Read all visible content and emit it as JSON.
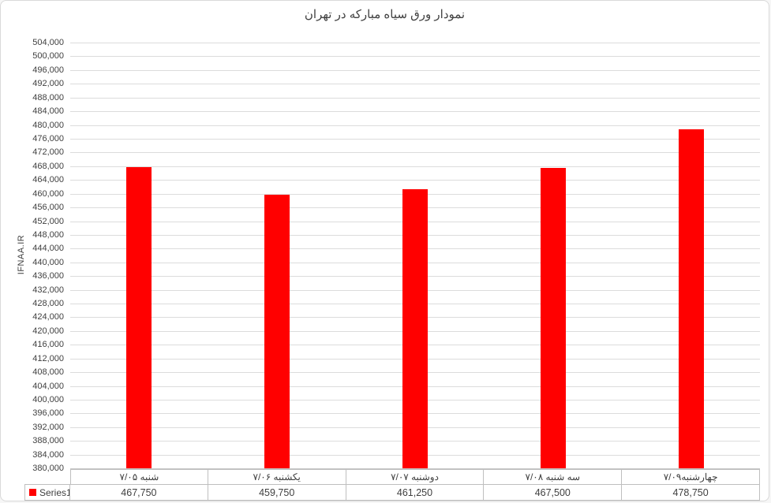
{
  "chart": {
    "title": "نمودار ورق سیاه مبارکه در تهران",
    "y_axis_title": "IFNAA.IR",
    "series_name": "Series1"
  },
  "chart_data": {
    "type": "bar",
    "title": "نمودار ورق سیاه مبارکه در تهران",
    "xlabel": "",
    "ylabel": "IFNAA.IR",
    "categories": [
      "شنبه ۷/۰۵",
      "یکشنبه ۷/۰۶",
      "دوشنبه ۷/۰۷",
      "سه شنبه ۷/۰۸",
      "چهارشنبه۷/۰۹"
    ],
    "series": [
      {
        "name": "Series1",
        "values": [
          467750,
          459750,
          461250,
          467500,
          478750
        ]
      }
    ],
    "ylim": [
      380000,
      504000
    ],
    "ytick_step": 4000,
    "grid": true,
    "legend_position": "data-table-left",
    "bar_color": "#FF0000",
    "gridline_color": "#dcdcdc",
    "number_format": "#,##0"
  }
}
